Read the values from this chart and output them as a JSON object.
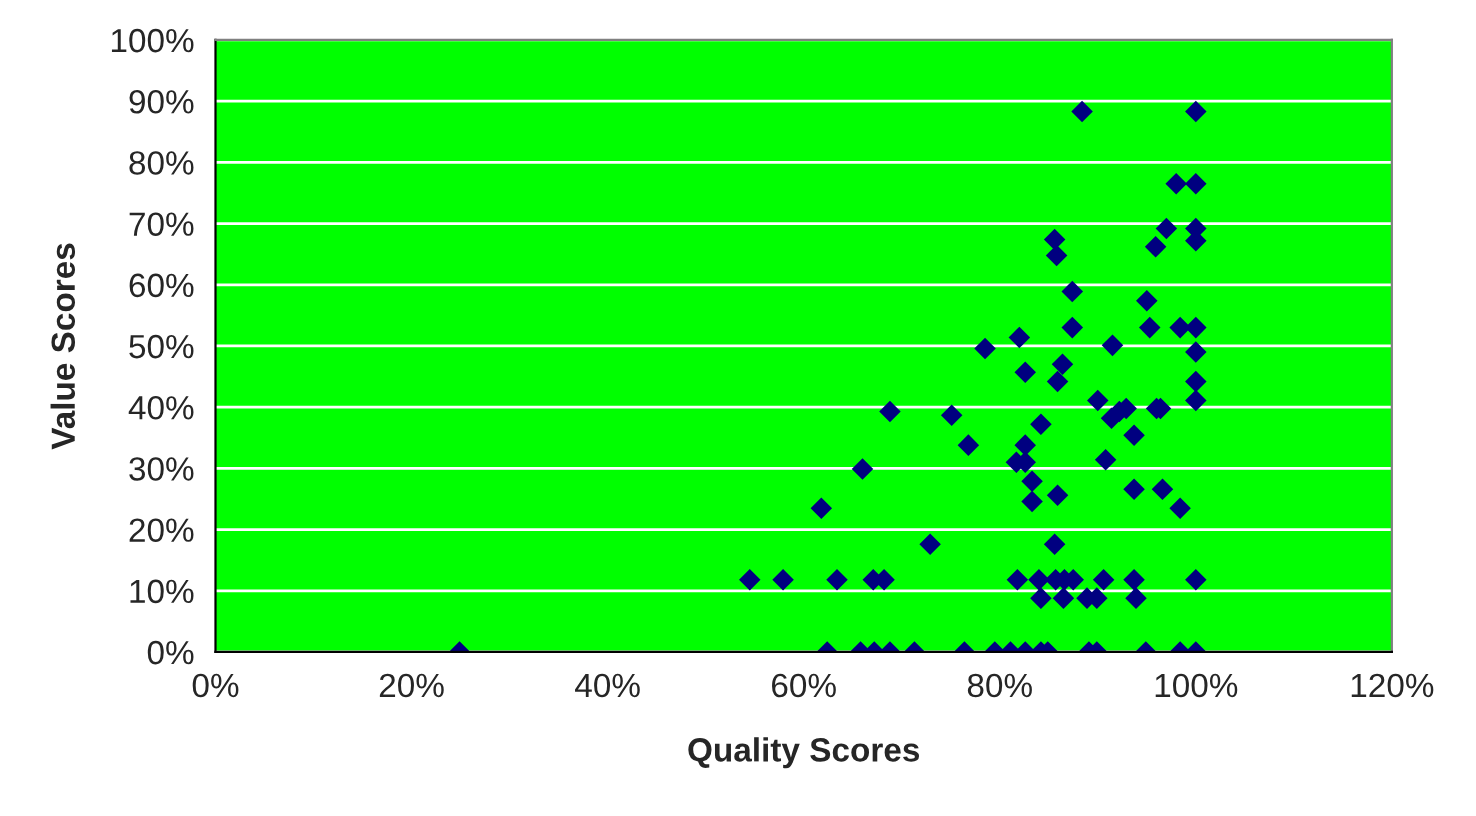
{
  "chart_data": {
    "type": "scatter",
    "xlabel": "Quality Scores",
    "ylabel": "Value Scores",
    "x": [
      24.9,
      54.5,
      57.9,
      61.8,
      62.4,
      63.4,
      66.0,
      65.8,
      67.2,
      67.1,
      68.2,
      68.8,
      68.8,
      71.3,
      72.9,
      75.1,
      76.4,
      76.8,
      78.5,
      79.5,
      81.1,
      81.7,
      81.8,
      82.0,
      82.6,
      82.6,
      82.6,
      82.6,
      83.3,
      83.3,
      84.0,
      84.2,
      84.2,
      84.2,
      84.9,
      85.6,
      85.8,
      85.6,
      85.7,
      85.9,
      85.9,
      86.4,
      86.5,
      86.6,
      87.4,
      87.4,
      87.5,
      88.4,
      88.9,
      89.1,
      89.9,
      89.9,
      90.0,
      90.6,
      90.8,
      91.5,
      91.4,
      92.2,
      92.9,
      93.7,
      93.7,
      93.7,
      93.9,
      94.9,
      95.0,
      95.3,
      95.9,
      96.0,
      96.4,
      97.0,
      96.6,
      98.0,
      98.4,
      98.4,
      98.4,
      100,
      100,
      100,
      100,
      100,
      100,
      100,
      100,
      100,
      100
    ],
    "values": [
      0,
      11.8,
      11.8,
      23.5,
      0,
      11.8,
      29.9,
      0,
      0,
      11.8,
      11.8,
      39.3,
      0,
      0,
      17.6,
      38.7,
      0,
      33.8,
      49.6,
      0,
      0,
      31.0,
      11.8,
      51.4,
      45.7,
      33.8,
      31.0,
      0,
      27.9,
      24.6,
      11.8,
      37.2,
      8.8,
      0,
      0,
      67.4,
      64.8,
      17.6,
      11.8,
      44.2,
      25.6,
      47.0,
      8.8,
      11.8,
      58.9,
      53.0,
      11.8,
      88.3,
      8.8,
      0,
      0,
      8.8,
      41.1,
      11.8,
      31.4,
      50.1,
      38.2,
      39.3,
      39.8,
      35.4,
      26.6,
      11.8,
      8.8,
      0,
      57.4,
      53.0,
      66.2,
      39.8,
      39.8,
      69.2,
      26.6,
      76.5,
      53.0,
      23.5,
      0,
      88.3,
      76.5,
      69.2,
      67.2,
      53.0,
      49.0,
      44.2,
      41.1,
      11.8,
      0
    ],
    "color": "#000080",
    "marker": "diamond",
    "grid": "y",
    "legend": false,
    "xlim": [
      0,
      120
    ],
    "ylim": [
      0,
      100
    ],
    "xticks": [
      {
        "value": 0,
        "label": "0%"
      },
      {
        "value": 20,
        "label": "20%"
      },
      {
        "value": 40,
        "label": "40%"
      },
      {
        "value": 60,
        "label": "60%"
      },
      {
        "value": 80,
        "label": "80%"
      },
      {
        "value": 100,
        "label": "100%"
      },
      {
        "value": 120,
        "label": "120%"
      }
    ],
    "yticks": [
      {
        "value": 0,
        "label": "0%"
      },
      {
        "value": 10,
        "label": "10%"
      },
      {
        "value": 20,
        "label": "20%"
      },
      {
        "value": 30,
        "label": "30%"
      },
      {
        "value": 40,
        "label": "40%"
      },
      {
        "value": 50,
        "label": "50%"
      },
      {
        "value": 60,
        "label": "60%"
      },
      {
        "value": 70,
        "label": "70%"
      },
      {
        "value": 80,
        "label": "80%"
      },
      {
        "value": 90,
        "label": "90%"
      },
      {
        "value": 100,
        "label": "100%"
      }
    ]
  }
}
